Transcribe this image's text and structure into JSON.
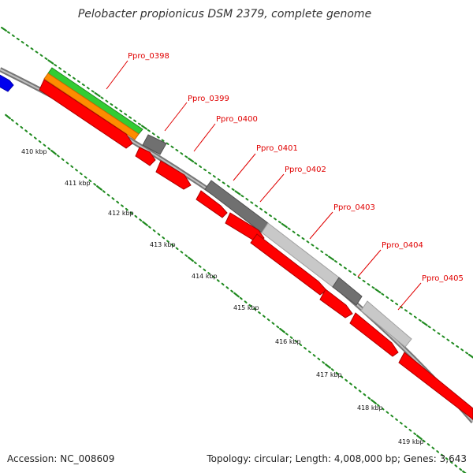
{
  "title": "Pelobacter propionicus DSM 2379, complete genome",
  "accession": "Accession: NC_008609",
  "summary": "Topology: circular; Length: 4,008,000 bp; Genes: 3,643",
  "colors": {
    "backbone": "#888888",
    "cds": "#ff0000",
    "label": "#e00000",
    "ticks": "#1f8a1f",
    "gene_dark": "#707070",
    "gene_light": "#c8c8c8",
    "green_feature": "#33cc33",
    "orange_feature": "#ff8c00",
    "blue_feature": "#0000ee"
  },
  "scale_labels": [
    "410 kbp",
    "411 kbp",
    "412 kbp",
    "413 kbp",
    "414 kbp",
    "415 kbp",
    "416 kbp",
    "417 kbp",
    "418 kbp",
    "419 kbp"
  ],
  "genes": [
    "Ppro_0398",
    "Ppro_0399",
    "Ppro_0400",
    "Ppro_0401",
    "Ppro_0402",
    "Ppro_0403",
    "Ppro_0404",
    "Ppro_0405"
  ]
}
